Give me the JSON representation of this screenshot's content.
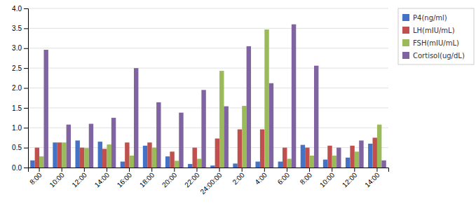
{
  "chart_data": {
    "type": "bar",
    "categories": [
      "8:00",
      "10:00",
      "12:00",
      "14:00",
      "16:00",
      "18:00",
      "20:00",
      "22:00",
      "24:00:00",
      "2:00",
      "4:00",
      "6:00",
      "8:00",
      "10:00",
      "12:00",
      "14:00"
    ],
    "series": [
      {
        "name": "P4(ng/ml)",
        "color": "#4472C4",
        "values": [
          0.18,
          0.63,
          0.68,
          0.65,
          0.15,
          0.55,
          0.28,
          0.09,
          0.05,
          0.1,
          0.15,
          0.15,
          0.57,
          0.2,
          0.25,
          0.6
        ]
      },
      {
        "name": "LH(mIU/mL)",
        "color": "#C0504D",
        "values": [
          0.5,
          0.63,
          0.5,
          0.47,
          0.63,
          0.63,
          0.4,
          0.5,
          0.73,
          0.96,
          0.96,
          0.5,
          0.5,
          0.55,
          0.55,
          0.75
        ]
      },
      {
        "name": "FSH(mIU/mL)",
        "color": "#9BBB59",
        "values": [
          0.28,
          0.63,
          0.49,
          0.58,
          0.3,
          0.5,
          0.17,
          0.22,
          2.43,
          1.55,
          3.47,
          0.22,
          0.3,
          0.3,
          0.4,
          1.08
        ]
      },
      {
        "name": "Cortisol(ug/dL)",
        "color": "#8064A2",
        "values": [
          2.96,
          1.08,
          1.1,
          1.25,
          2.5,
          1.64,
          1.38,
          1.95,
          1.54,
          3.05,
          2.12,
          3.6,
          2.56,
          0.5,
          0.68,
          0.18
        ]
      }
    ],
    "ylim": [
      0,
      4
    ],
    "yticks": [
      {
        "value": 0,
        "label": "0.0"
      },
      0.5,
      {
        "value": 1,
        "label": "1.0"
      },
      1.5,
      {
        "value": 2,
        "label": "2.0"
      },
      2.5,
      {
        "value": 3,
        "label": "3.0"
      },
      3.5,
      {
        "value": 4,
        "label": "4.0"
      }
    ],
    "grid": true,
    "legend": "right"
  }
}
